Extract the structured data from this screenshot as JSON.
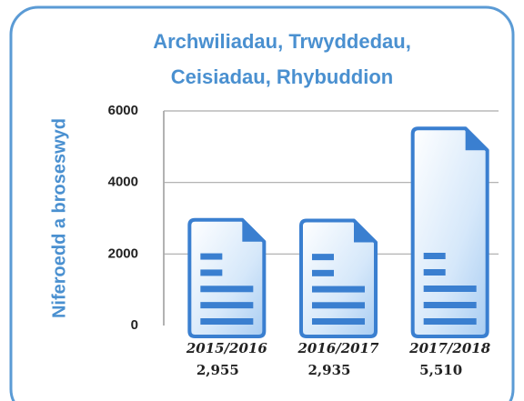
{
  "chart_data": {
    "type": "bar",
    "title": [
      "Archwiliadau, Trwyddedau,",
      "Ceisiadau, Rhybuddion"
    ],
    "y_label": "Niferoedd a broseswyd",
    "categories": [
      "2015/2016",
      "2016/2017",
      "2017/2018"
    ],
    "values": [
      2955,
      2935,
      5510
    ],
    "value_labels": [
      "2,955",
      "2,935",
      "5,510"
    ],
    "color": "#3a7fd0",
    "ylim": [
      0,
      6000
    ],
    "yticks": [
      0,
      2000,
      4000,
      6000
    ],
    "grid": true
  }
}
